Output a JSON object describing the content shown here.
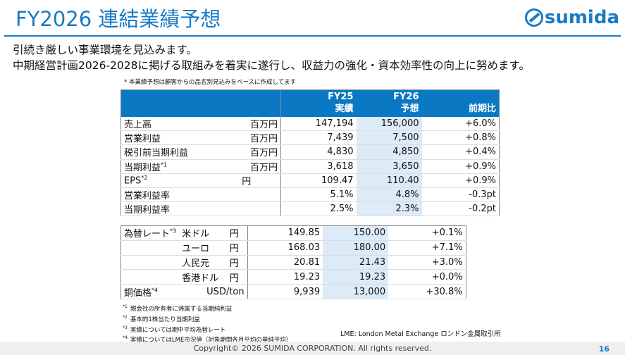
{
  "title": "FY2026 連結業績予想",
  "logo": "sumida",
  "lead": [
    "引続き厳しい事業環境を見込みます。",
    "中期経営計画2026-2028に掲げる取組みを着実に遂行し、収益力の強化・資本効率性の向上に努めます。"
  ],
  "note": "* 本業績予想は顧客からの品名別見込みをベースに作成してます",
  "header": {
    "fy25": "FY25",
    "fy25_sub": "実績",
    "fy26": "FY26",
    "fy26_sub": "予想",
    "yoy": "前期比"
  },
  "rows": [
    {
      "label": "売上高",
      "sup": "",
      "unit": "百万円",
      "fy25": "147,194",
      "fy26": "156,000",
      "yoy": "+6.0%"
    },
    {
      "label": "営業利益",
      "sup": "",
      "unit": "百万円",
      "fy25": "7,439",
      "fy26": "7,500",
      "yoy": "+0.8%"
    },
    {
      "label": "税引前当期利益",
      "sup": "",
      "unit": "百万円",
      "fy25": "4,830",
      "fy26": "4,850",
      "yoy": "+0.4%"
    },
    {
      "label": "当期利益",
      "sup": "*1",
      "unit": "百万円",
      "fy25": "3,618",
      "fy26": "3,650",
      "yoy": "+0.9%"
    },
    {
      "label": "EPS",
      "sup": "*2",
      "unit": "円",
      "fy25": "109.47",
      "fy26": "110.40",
      "yoy": "+0.9%"
    },
    {
      "label": "営業利益率",
      "sup": "",
      "unit": "",
      "fy25": "5.1%",
      "fy26": "4.8%",
      "yoy": "-0.3pt"
    },
    {
      "label": "当期利益率",
      "sup": "",
      "unit": "",
      "fy25": "2.5%",
      "fy26": "2.3%",
      "yoy": "-0.2pt"
    }
  ],
  "fx_label": "為替レート",
  "fx_sup": "*3",
  "fx_rows": [
    {
      "currency": "米ドル",
      "unit": "円",
      "fy25": "149.85",
      "fy26": "150.00",
      "yoy": "+0.1%"
    },
    {
      "currency": "ユーロ",
      "unit": "円",
      "fy25": "168.03",
      "fy26": "180.00",
      "yoy": "+7.1%"
    },
    {
      "currency": "人民元",
      "unit": "円",
      "fy25": "20.81",
      "fy26": "21.43",
      "yoy": "+3.0%"
    },
    {
      "currency": "香港ドル",
      "unit": "円",
      "fy25": "19.23",
      "fy26": "19.23",
      "yoy": "+0.0%"
    }
  ],
  "copper": {
    "label": "銅価格",
    "sup": "*4",
    "unit": "USD/ton",
    "fy25": "9,939",
    "fy26": "13,000",
    "yoy": "+30.8%"
  },
  "footnotes": [
    {
      "mark": "*1",
      "text": "親会社の所有者に帰属する当期純利益"
    },
    {
      "mark": "*2",
      "text": "基本的1株当たり当期利益"
    },
    {
      "mark": "*3",
      "text": "実績については期中平均為替レート"
    },
    {
      "mark": "*4",
      "text": "実績についてはLME市況値（対象期間各月平均の単純平均）"
    }
  ],
  "lme": "LME: London Metal Exchange ロンドン金属取引所",
  "copyright": "Copyright© 2026 SUMIDA CORPORATION. All rights reserved.",
  "page": "16"
}
